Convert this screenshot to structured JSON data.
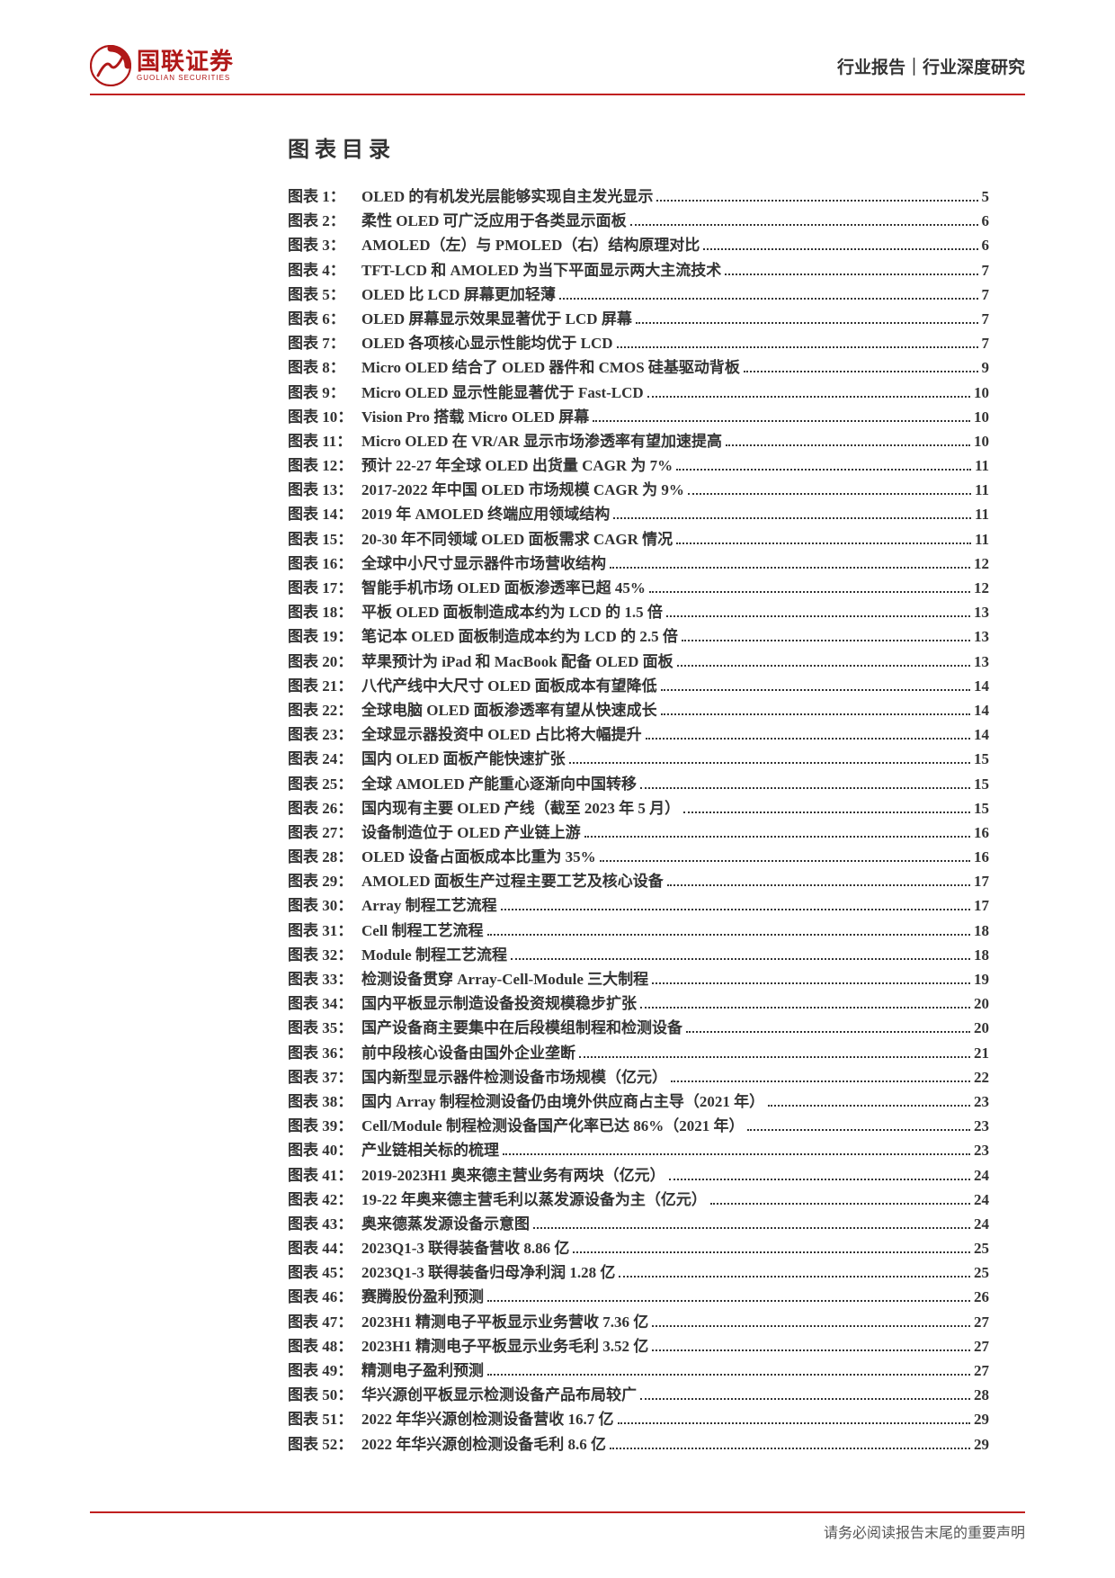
{
  "header": {
    "logo_cn": "国联证券",
    "logo_en": "GUOLIAN SECURITIES",
    "right_text": "行业报告｜行业深度研究"
  },
  "toc": {
    "title": "图表目录",
    "label_prefix": "图表 ",
    "label_suffix": "：",
    "items": [
      {
        "n": 1,
        "t": "OLED 的有机发光层能够实现自主发光显示",
        "p": 5
      },
      {
        "n": 2,
        "t": "柔性 OLED 可广泛应用于各类显示面板",
        "p": 6
      },
      {
        "n": 3,
        "t": "AMOLED（左）与 PMOLED（右）结构原理对比",
        "p": 6
      },
      {
        "n": 4,
        "t": "TFT-LCD 和 AMOLED 为当下平面显示两大主流技术",
        "p": 7
      },
      {
        "n": 5,
        "t": "OLED 比 LCD 屏幕更加轻薄",
        "p": 7
      },
      {
        "n": 6,
        "t": "OLED 屏幕显示效果显著优于 LCD 屏幕",
        "p": 7
      },
      {
        "n": 7,
        "t": "OLED 各项核心显示性能均优于 LCD",
        "p": 7
      },
      {
        "n": 8,
        "t": "Micro OLED 结合了 OLED 器件和 CMOS 硅基驱动背板",
        "p": 9
      },
      {
        "n": 9,
        "t": "Micro OLED 显示性能显著优于 Fast-LCD",
        "p": 10
      },
      {
        "n": 10,
        "t": "Vision Pro 搭载 Micro OLED 屏幕",
        "p": 10
      },
      {
        "n": 11,
        "t": "Micro OLED 在 VR/AR 显示市场渗透率有望加速提高",
        "p": 10
      },
      {
        "n": 12,
        "t": "预计 22-27 年全球 OLED 出货量 CAGR 为 7%",
        "p": 11
      },
      {
        "n": 13,
        "t": "2017-2022 年中国 OLED 市场规模 CAGR 为 9%",
        "p": 11
      },
      {
        "n": 14,
        "t": "2019 年 AMOLED 终端应用领域结构",
        "p": 11
      },
      {
        "n": 15,
        "t": "20-30 年不同领域 OLED 面板需求 CAGR 情况",
        "p": 11
      },
      {
        "n": 16,
        "t": "全球中小尺寸显示器件市场营收结构",
        "p": 12
      },
      {
        "n": 17,
        "t": "智能手机市场 OLED 面板渗透率已超 45%",
        "p": 12
      },
      {
        "n": 18,
        "t": "平板 OLED 面板制造成本约为 LCD 的 1.5 倍",
        "p": 13
      },
      {
        "n": 19,
        "t": "笔记本 OLED 面板制造成本约为 LCD 的 2.5 倍",
        "p": 13
      },
      {
        "n": 20,
        "t": "苹果预计为 iPad 和 MacBook 配备 OLED 面板",
        "p": 13
      },
      {
        "n": 21,
        "t": "八代产线中大尺寸 OLED 面板成本有望降低",
        "p": 14
      },
      {
        "n": 22,
        "t": "全球电脑 OLED 面板渗透率有望从快速成长",
        "p": 14
      },
      {
        "n": 23,
        "t": "全球显示器投资中 OLED 占比将大幅提升",
        "p": 14
      },
      {
        "n": 24,
        "t": "国内 OLED 面板产能快速扩张",
        "p": 15
      },
      {
        "n": 25,
        "t": "全球 AMOLED 产能重心逐渐向中国转移",
        "p": 15
      },
      {
        "n": 26,
        "t": "国内现有主要 OLED 产线（截至 2023 年 5 月）",
        "p": 15
      },
      {
        "n": 27,
        "t": "设备制造位于 OLED 产业链上游",
        "p": 16
      },
      {
        "n": 28,
        "t": "OLED 设备占面板成本比重为 35%",
        "p": 16
      },
      {
        "n": 29,
        "t": "AMOLED 面板生产过程主要工艺及核心设备",
        "p": 17
      },
      {
        "n": 30,
        "t": "Array 制程工艺流程",
        "p": 17
      },
      {
        "n": 31,
        "t": "Cell 制程工艺流程",
        "p": 18
      },
      {
        "n": 32,
        "t": "Module 制程工艺流程",
        "p": 18
      },
      {
        "n": 33,
        "t": "检测设备贯穿 Array-Cell-Module 三大制程",
        "p": 19
      },
      {
        "n": 34,
        "t": "国内平板显示制造设备投资规模稳步扩张",
        "p": 20
      },
      {
        "n": 35,
        "t": "国产设备商主要集中在后段模组制程和检测设备",
        "p": 20
      },
      {
        "n": 36,
        "t": "前中段核心设备由国外企业垄断",
        "p": 21
      },
      {
        "n": 37,
        "t": "国内新型显示器件检测设备市场规模（亿元）",
        "p": 22
      },
      {
        "n": 38,
        "t": "国内 Array 制程检测设备仍由境外供应商占主导（2021 年）",
        "p": 23
      },
      {
        "n": 39,
        "t": "Cell/Module 制程检测设备国产化率已达 86%（2021 年）",
        "p": 23
      },
      {
        "n": 40,
        "t": "产业链相关标的梳理",
        "p": 23
      },
      {
        "n": 41,
        "t": "2019-2023H1 奥来德主营业务有两块（亿元）",
        "p": 24
      },
      {
        "n": 42,
        "t": "19-22 年奥来德主营毛利以蒸发源设备为主（亿元）",
        "p": 24
      },
      {
        "n": 43,
        "t": "奥来德蒸发源设备示意图",
        "p": 24
      },
      {
        "n": 44,
        "t": "2023Q1-3 联得装备营收 8.86 亿",
        "p": 25
      },
      {
        "n": 45,
        "t": "2023Q1-3 联得装备归母净利润 1.28 亿",
        "p": 25
      },
      {
        "n": 46,
        "t": "赛腾股份盈利预测",
        "p": 26
      },
      {
        "n": 47,
        "t": "2023H1 精测电子平板显示业务营收 7.36 亿",
        "p": 27
      },
      {
        "n": 48,
        "t": "2023H1 精测电子平板显示业务毛利 3.52 亿",
        "p": 27
      },
      {
        "n": 49,
        "t": "精测电子盈利预测",
        "p": 27
      },
      {
        "n": 50,
        "t": "华兴源创平板显示检测设备产品布局较广",
        "p": 28
      },
      {
        "n": 51,
        "t": "2022 年华兴源创检测设备营收 16.7 亿",
        "p": 29
      },
      {
        "n": 52,
        "t": "2022 年华兴源创检测设备毛利 8.6 亿",
        "p": 29
      }
    ]
  },
  "footer": "请务必阅读报告末尾的重要声明",
  "colors": {
    "accent": "#c02020",
    "text": "#333333",
    "footer": "#555555",
    "bg": "#ffffff"
  }
}
